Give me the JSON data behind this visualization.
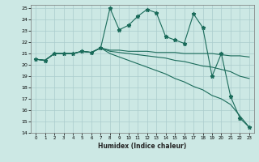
{
  "xlabel": "Humidex (Indice chaleur)",
  "bg_color": "#cce8e4",
  "grid_color": "#aacccc",
  "line_color": "#1a6b5a",
  "xlim": [
    -0.5,
    23.5
  ],
  "ylim": [
    14,
    25.3
  ],
  "xticks": [
    0,
    1,
    2,
    3,
    4,
    5,
    6,
    7,
    8,
    9,
    10,
    11,
    12,
    13,
    14,
    15,
    16,
    17,
    18,
    19,
    20,
    21,
    22,
    23
  ],
  "yticks": [
    14,
    15,
    16,
    17,
    18,
    19,
    20,
    21,
    22,
    23,
    24,
    25
  ],
  "x": [
    0,
    1,
    2,
    3,
    4,
    5,
    6,
    7,
    8,
    9,
    10,
    11,
    12,
    13,
    14,
    15,
    16,
    17,
    18,
    19,
    20,
    21,
    22,
    23
  ],
  "line1_y": [
    20.5,
    20.4,
    21.0,
    21.0,
    21.0,
    21.2,
    21.1,
    21.5,
    25.0,
    23.1,
    23.5,
    24.3,
    24.9,
    24.6,
    22.5,
    22.2,
    21.9,
    24.5,
    23.3,
    19.0,
    21.0,
    17.2,
    15.3,
    14.5
  ],
  "line2_y": [
    20.5,
    20.4,
    21.0,
    21.0,
    21.0,
    21.2,
    21.1,
    21.5,
    21.3,
    21.3,
    21.2,
    21.2,
    21.2,
    21.1,
    21.1,
    21.1,
    21.0,
    21.0,
    21.0,
    21.0,
    20.9,
    20.8,
    20.8,
    20.7
  ],
  "line3_y": [
    20.5,
    20.4,
    21.0,
    21.0,
    21.0,
    21.2,
    21.1,
    21.5,
    21.2,
    21.1,
    21.0,
    20.9,
    20.8,
    20.7,
    20.6,
    20.4,
    20.3,
    20.1,
    19.9,
    19.8,
    19.6,
    19.4,
    19.0,
    18.8
  ],
  "line4_y": [
    20.5,
    20.4,
    21.0,
    21.0,
    21.0,
    21.2,
    21.1,
    21.5,
    21.0,
    20.7,
    20.4,
    20.1,
    19.8,
    19.5,
    19.2,
    18.8,
    18.5,
    18.1,
    17.8,
    17.3,
    17.0,
    16.5,
    15.5,
    14.5
  ]
}
